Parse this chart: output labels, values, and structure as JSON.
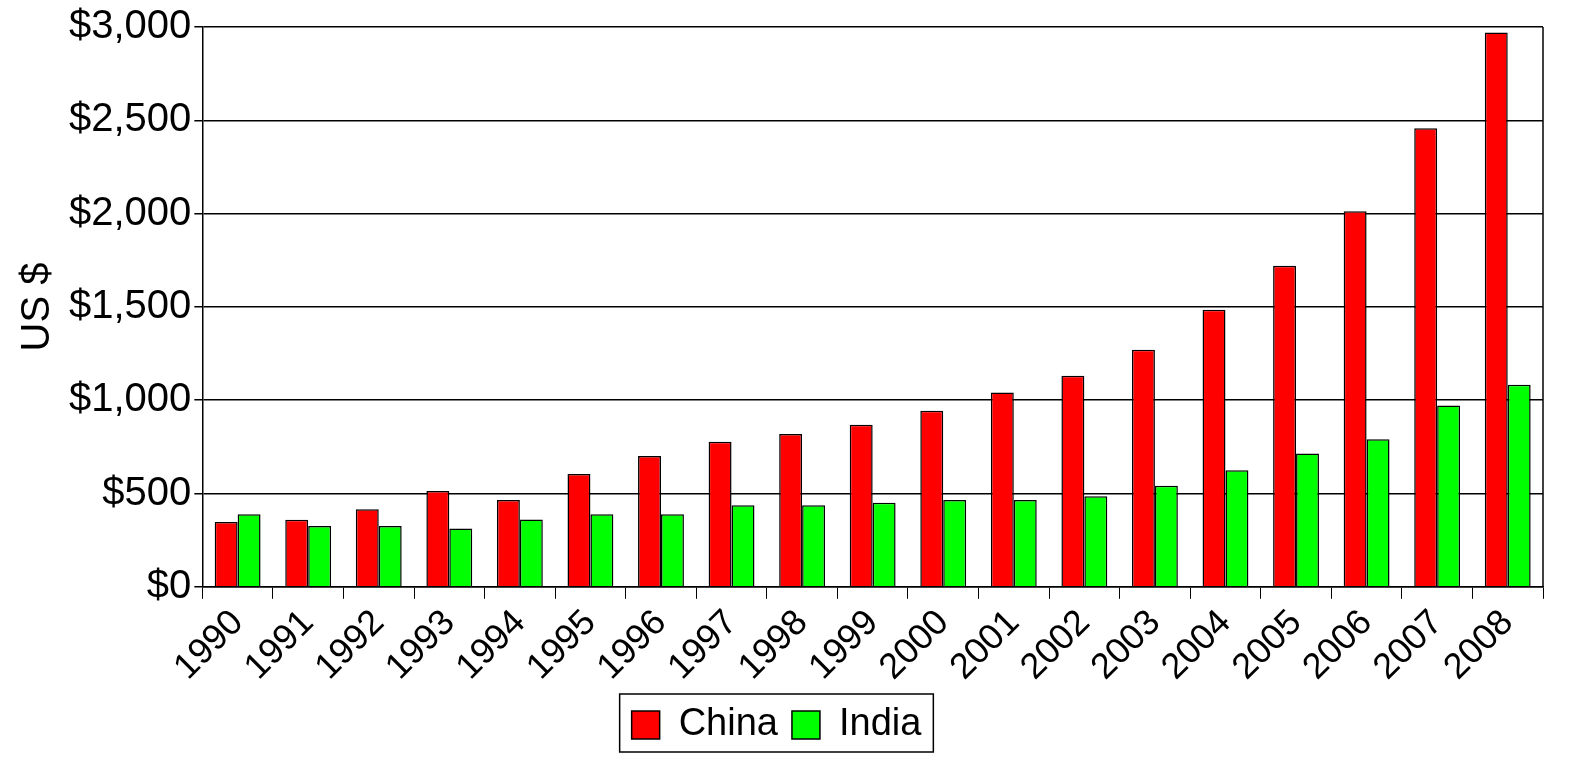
{
  "chart_data": {
    "type": "bar",
    "ylabel": "US $",
    "categories": [
      "1990",
      "1991",
      "1992",
      "1993",
      "1994",
      "1995",
      "1996",
      "1997",
      "1998",
      "1999",
      "2000",
      "2001",
      "2002",
      "2003",
      "2004",
      "2005",
      "2006",
      "2007",
      "2008"
    ],
    "series": [
      {
        "name": "China",
        "color": "#ff0000",
        "values": [
          347,
          360,
          416,
          514,
          465,
          604,
          701,
          777,
          819,
          868,
          944,
          1041,
          1131,
          1270,
          1485,
          1721,
          2013,
          2457,
          2970
        ]
      },
      {
        "name": "India",
        "color": "#00ff00",
        "values": [
          389,
          326,
          326,
          312,
          361,
          389,
          389,
          437,
          437,
          451,
          465,
          465,
          486,
          541,
          625,
          715,
          791,
          972,
          1083
        ]
      }
    ],
    "ylim": [
      0,
      3000
    ],
    "yticks": [
      {
        "value": 0,
        "label": "$0"
      },
      {
        "value": 500,
        "label": "$500"
      },
      {
        "value": 1000,
        "label": "$1,000"
      },
      {
        "value": 1500,
        "label": "$1,500"
      },
      {
        "value": 2000,
        "label": "$2,000"
      },
      {
        "value": 2500,
        "label": "$2,500"
      },
      {
        "value": 3000,
        "label": "$3,000"
      }
    ],
    "grid": "y",
    "legend": "bottom"
  }
}
